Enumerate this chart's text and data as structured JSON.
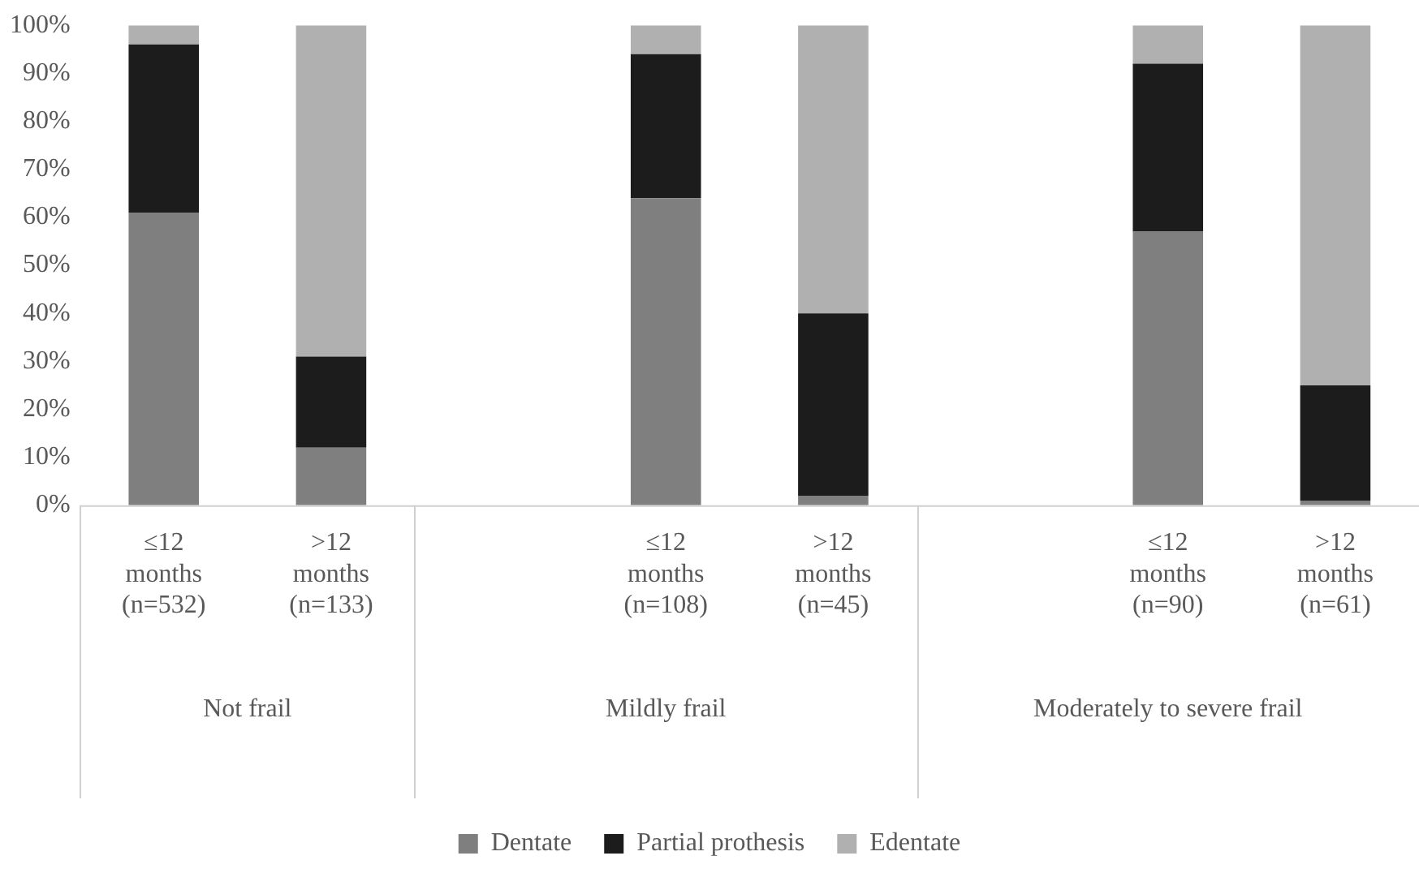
{
  "chart_data": {
    "type": "bar",
    "stacked": true,
    "categories": [
      "≤12 months (n=532)",
      ">12 months (n=133)",
      null,
      "≤12 months (n=108)",
      ">12 months (n=45)",
      null,
      "≤12 months (n=90)",
      ">12 months (n=61)"
    ],
    "series": [
      {
        "name": "Dentate",
        "color": "#7f7f7f",
        "values": [
          61,
          12,
          null,
          64,
          2,
          null,
          57,
          1
        ]
      },
      {
        "name": "Partial prothesis",
        "color": "#1c1c1c",
        "values": [
          35,
          19,
          null,
          30,
          38,
          null,
          35,
          24
        ]
      },
      {
        "name": "Edentate",
        "color": "#b0b0b0",
        "values": [
          4,
          69,
          null,
          6,
          60,
          null,
          8,
          75
        ]
      }
    ],
    "ylim": [
      0,
      100
    ],
    "yticks": [
      {
        "value": 0,
        "label": "0%"
      },
      {
        "value": 10,
        "label": "10%"
      },
      {
        "value": 20,
        "label": "20%"
      },
      {
        "value": 30,
        "label": "30%"
      },
      {
        "value": 40,
        "label": "40%"
      },
      {
        "value": 50,
        "label": "50%"
      },
      {
        "value": 60,
        "label": "60%"
      },
      {
        "value": 70,
        "label": "70%"
      },
      {
        "value": 80,
        "label": "80%"
      },
      {
        "value": 90,
        "label": "90%"
      },
      {
        "value": 100,
        "label": "100%"
      }
    ],
    "annotations": [
      "Not frail",
      "Mildly frail",
      "Moderately to severe frail"
    ],
    "grid": false,
    "legend": "bottom"
  }
}
